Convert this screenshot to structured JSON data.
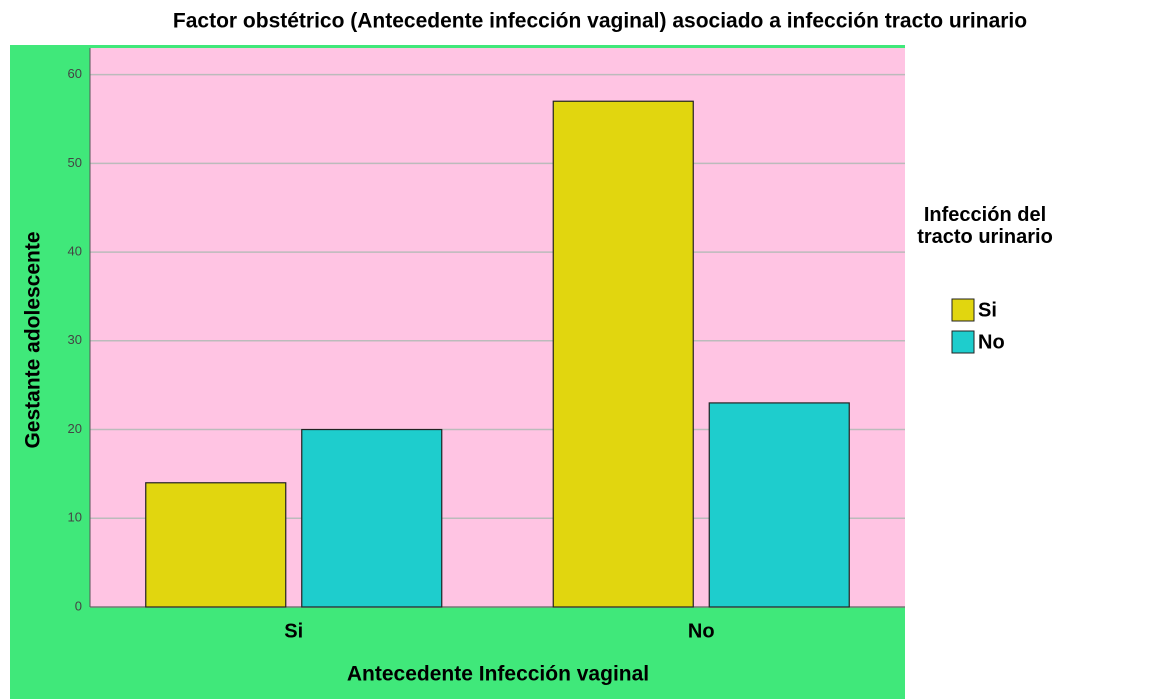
{
  "chart_data": {
    "type": "bar",
    "title": "Factor obstétrico (Antecedente infección vaginal) asociado a infección tracto urinario",
    "x_label": "Antecedente Infección vaginal",
    "y_label": "Gestante adolescente",
    "legend_title": "Infección del tracto urinario",
    "categories": [
      "Si",
      "No"
    ],
    "series": [
      {
        "name": "Si",
        "color": "#e1d60f",
        "values": [
          14,
          57
        ]
      },
      {
        "name": "No",
        "color": "#1ecdcd",
        "values": [
          20,
          23
        ]
      }
    ],
    "ylim": [
      0,
      63
    ],
    "yticks": [
      0,
      10,
      20,
      30,
      40,
      50,
      60
    ],
    "grid": true
  }
}
